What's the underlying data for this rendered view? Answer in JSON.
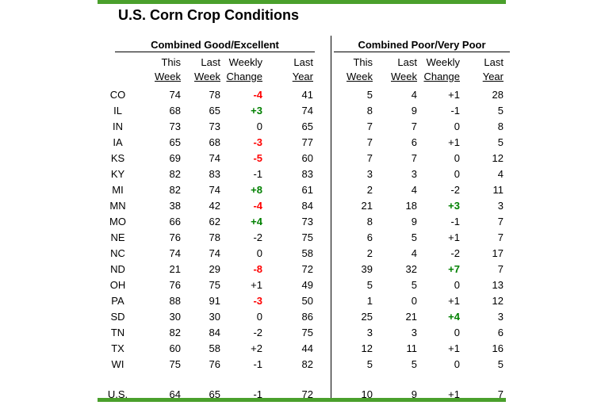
{
  "chart_data": {
    "type": "table",
    "title": "U.S. Corn Crop Conditions",
    "groups": [
      "Combined Good/Excellent",
      "Combined Poor/Very Poor"
    ],
    "columns": [
      [
        "This",
        "Week"
      ],
      [
        "Last",
        "Week"
      ],
      [
        "Weekly",
        "Change"
      ],
      [
        "Last",
        "Year"
      ]
    ],
    "rows": [
      {
        "state": "CO",
        "good_excellent": [
          74,
          78,
          -4,
          41
        ],
        "poor_very_poor": [
          5,
          4,
          1,
          28
        ]
      },
      {
        "state": "IL",
        "good_excellent": [
          68,
          65,
          3,
          74
        ],
        "poor_very_poor": [
          8,
          9,
          -1,
          5
        ]
      },
      {
        "state": "IN",
        "good_excellent": [
          73,
          73,
          0,
          65
        ],
        "poor_very_poor": [
          7,
          7,
          0,
          8
        ]
      },
      {
        "state": "IA",
        "good_excellent": [
          65,
          68,
          -3,
          77
        ],
        "poor_very_poor": [
          7,
          6,
          1,
          5
        ]
      },
      {
        "state": "KS",
        "good_excellent": [
          69,
          74,
          -5,
          60
        ],
        "poor_very_poor": [
          7,
          7,
          0,
          12
        ]
      },
      {
        "state": "KY",
        "good_excellent": [
          82,
          83,
          -1,
          83
        ],
        "poor_very_poor": [
          3,
          3,
          0,
          4
        ]
      },
      {
        "state": "MI",
        "good_excellent": [
          82,
          74,
          8,
          61
        ],
        "poor_very_poor": [
          2,
          4,
          -2,
          11
        ]
      },
      {
        "state": "MN",
        "good_excellent": [
          38,
          42,
          -4,
          84
        ],
        "poor_very_poor": [
          21,
          18,
          3,
          3
        ]
      },
      {
        "state": "MO",
        "good_excellent": [
          66,
          62,
          4,
          73
        ],
        "poor_very_poor": [
          8,
          9,
          -1,
          7
        ]
      },
      {
        "state": "NE",
        "good_excellent": [
          76,
          78,
          -2,
          75
        ],
        "poor_very_poor": [
          6,
          5,
          1,
          7
        ]
      },
      {
        "state": "NC",
        "good_excellent": [
          74,
          74,
          0,
          58
        ],
        "poor_very_poor": [
          2,
          4,
          -2,
          17
        ]
      },
      {
        "state": "ND",
        "good_excellent": [
          21,
          29,
          -8,
          72
        ],
        "poor_very_poor": [
          39,
          32,
          7,
          7
        ]
      },
      {
        "state": "OH",
        "good_excellent": [
          76,
          75,
          1,
          49
        ],
        "poor_very_poor": [
          5,
          5,
          0,
          13
        ]
      },
      {
        "state": "PA",
        "good_excellent": [
          88,
          91,
          -3,
          50
        ],
        "poor_very_poor": [
          1,
          0,
          1,
          12
        ]
      },
      {
        "state": "SD",
        "good_excellent": [
          30,
          30,
          0,
          86
        ],
        "poor_very_poor": [
          25,
          21,
          4,
          3
        ]
      },
      {
        "state": "TN",
        "good_excellent": [
          82,
          84,
          -2,
          75
        ],
        "poor_very_poor": [
          3,
          3,
          0,
          6
        ]
      },
      {
        "state": "TX",
        "good_excellent": [
          60,
          58,
          2,
          44
        ],
        "poor_very_poor": [
          12,
          11,
          1,
          16
        ]
      },
      {
        "state": "WI",
        "good_excellent": [
          75,
          76,
          -1,
          82
        ],
        "poor_very_poor": [
          5,
          5,
          0,
          5
        ]
      }
    ],
    "us_row": {
      "state": "U.S.",
      "good_excellent": [
        64,
        65,
        -1,
        72
      ],
      "poor_very_poor": [
        10,
        9,
        1,
        7
      ]
    }
  },
  "style": {
    "accent_green": "#4aa02c",
    "positive_change_color": "#008000",
    "negative_change_color": "#ff0000",
    "change_highlight_abs": 3
  }
}
